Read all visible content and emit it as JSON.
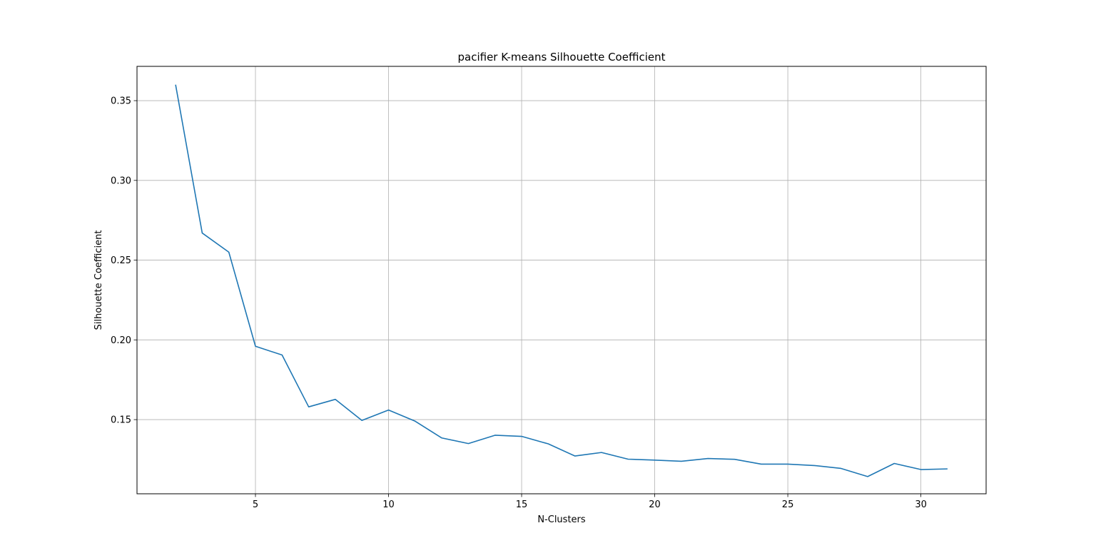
{
  "chart_data": {
    "type": "line",
    "title": "pacifier K-means Silhouette Coefficient",
    "xlabel": "N-Clusters",
    "ylabel": "Silhouette Coefficient",
    "xlim": [
      0.55,
      32.45
    ],
    "ylim": [
      0.1035,
      0.3715
    ],
    "xticks": [
      5,
      10,
      15,
      20,
      25,
      30
    ],
    "yticks": [
      0.15,
      0.2,
      0.25,
      0.3,
      0.35
    ],
    "ytick_labels": [
      "0.15",
      "0.20",
      "0.25",
      "0.30",
      "0.35"
    ],
    "grid": true,
    "series": [
      {
        "color": "#1f77b4",
        "x": [
          2,
          3,
          4,
          5,
          6,
          7,
          8,
          9,
          10,
          11,
          12,
          13,
          14,
          15,
          16,
          17,
          18,
          19,
          20,
          21,
          22,
          23,
          24,
          25,
          26,
          27,
          28,
          29,
          30,
          31
        ],
        "y": [
          0.36,
          0.267,
          0.255,
          0.196,
          0.1905,
          0.158,
          0.1627,
          0.1495,
          0.156,
          0.149,
          0.1385,
          0.135,
          0.1402,
          0.1395,
          0.1348,
          0.1272,
          0.1294,
          0.1252,
          0.1246,
          0.1239,
          0.1256,
          0.1251,
          0.1221,
          0.1221,
          0.1212,
          0.1194,
          0.1143,
          0.1225,
          0.1187,
          0.1191
        ]
      }
    ]
  }
}
